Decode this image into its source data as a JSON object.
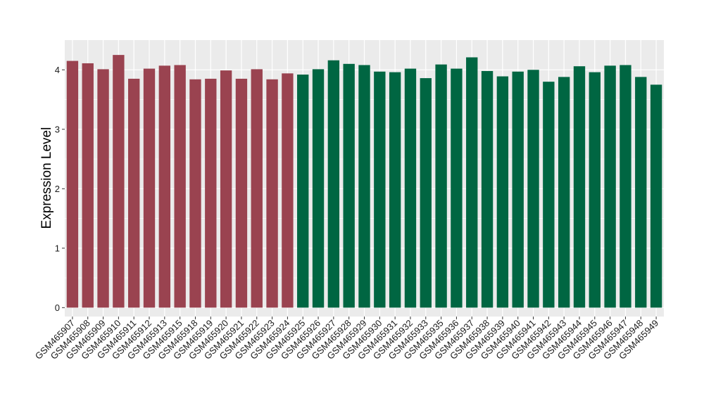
{
  "chart_data": {
    "type": "bar",
    "title": "",
    "xlabel": "",
    "ylabel": "Expression Level",
    "ylim": [
      -0.15,
      4.5
    ],
    "yticks": [
      0,
      1,
      2,
      3,
      4
    ],
    "grid": true,
    "background": "#ebebeb",
    "gridline_color": "#ffffff",
    "groups": [
      {
        "color": "#9a4350"
      },
      {
        "color": "#006642"
      }
    ],
    "categories": [
      "GSM465907",
      "GSM465908",
      "GSM465909",
      "GSM465910",
      "GSM465911",
      "GSM465912",
      "GSM465913",
      "GSM465915",
      "GSM465918",
      "GSM465919",
      "GSM465920",
      "GSM465921",
      "GSM465922",
      "GSM465923",
      "GSM465924",
      "GSM465925",
      "GSM465926",
      "GSM465927",
      "GSM465928",
      "GSM465929",
      "GSM465930",
      "GSM465931",
      "GSM465932",
      "GSM465933",
      "GSM465935",
      "GSM465936",
      "GSM465937",
      "GSM465938",
      "GSM465939",
      "GSM465940",
      "GSM465941",
      "GSM465942",
      "GSM465943",
      "GSM465944",
      "GSM465945",
      "GSM465946",
      "GSM465947",
      "GSM465948",
      "GSM465949"
    ],
    "values": [
      4.15,
      4.11,
      4.01,
      4.25,
      3.85,
      4.02,
      4.07,
      4.08,
      3.84,
      3.85,
      3.99,
      3.85,
      4.01,
      3.84,
      3.94,
      3.92,
      4.01,
      4.16,
      4.1,
      4.08,
      3.97,
      3.96,
      4.02,
      3.86,
      4.09,
      4.02,
      4.21,
      3.98,
      3.89,
      3.97,
      4.0,
      3.8,
      3.88,
      4.06,
      3.96,
      4.07,
      4.08,
      3.88,
      3.75
    ],
    "group_index": [
      0,
      0,
      0,
      0,
      0,
      0,
      0,
      0,
      0,
      0,
      0,
      0,
      0,
      0,
      0,
      1,
      1,
      1,
      1,
      1,
      1,
      1,
      1,
      1,
      1,
      1,
      1,
      1,
      1,
      1,
      1,
      1,
      1,
      1,
      1,
      1,
      1,
      1,
      1
    ]
  }
}
